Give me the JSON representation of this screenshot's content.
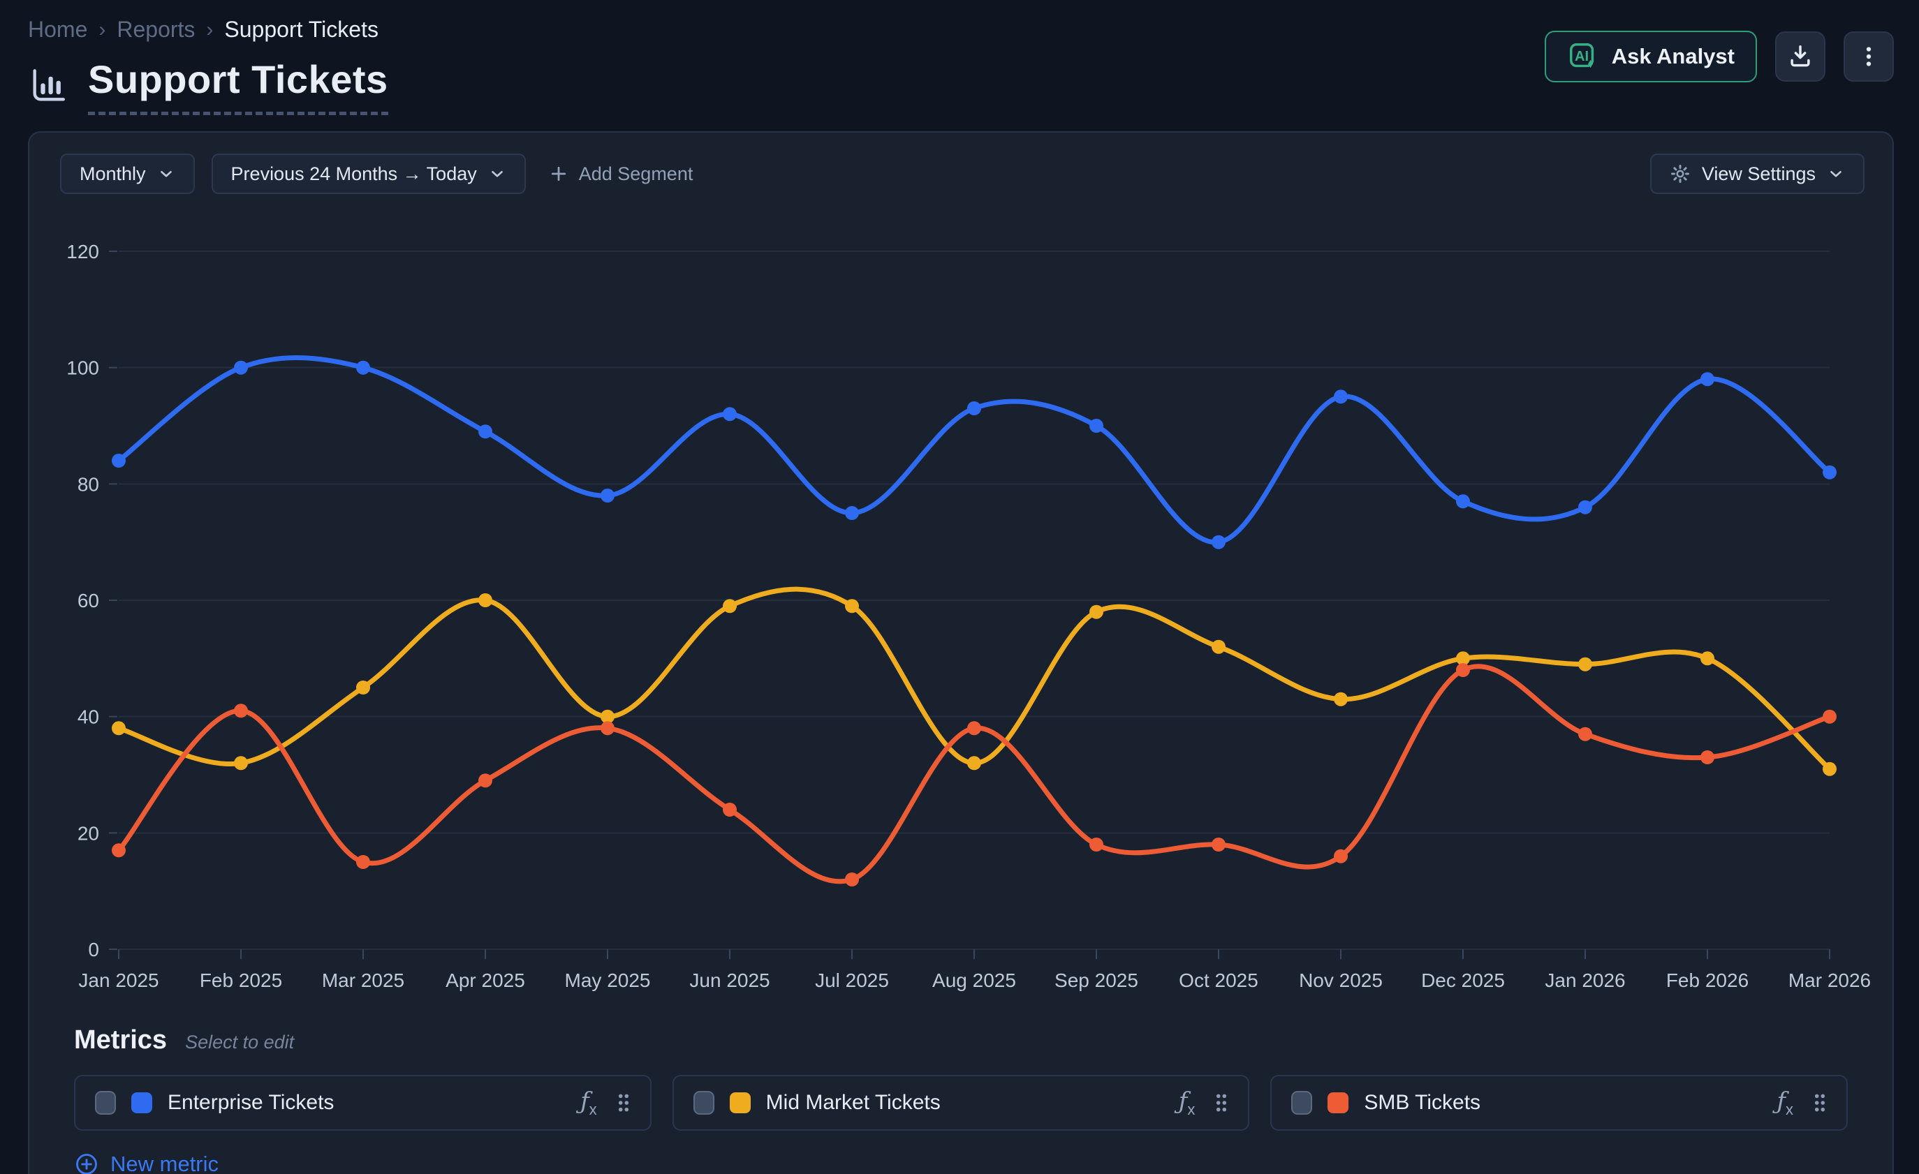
{
  "breadcrumb": {
    "items": [
      "Home",
      "Reports",
      "Support Tickets"
    ],
    "separator": "›"
  },
  "header": {
    "title": "Support Tickets"
  },
  "actions": {
    "ask_analyst_label": "Ask Analyst",
    "ai_badge_text": "AI"
  },
  "toolbar": {
    "granularity": "Monthly",
    "date_range": "Previous 24 Months → Today",
    "add_segment_label": "Add Segment",
    "view_settings_label": "View Settings"
  },
  "chart_data": {
    "type": "line",
    "title": "Support Tickets",
    "x": [
      "Jan 2025",
      "Feb 2025",
      "Mar 2025",
      "Apr 2025",
      "May 2025",
      "Jun 2025",
      "Jul 2025",
      "Aug 2025",
      "Sep 2025",
      "Oct 2025",
      "Nov 2025",
      "Dec 2025",
      "Jan 2026",
      "Feb 2026",
      "Mar 2026"
    ],
    "series": [
      {
        "name": "Enterprise Tickets",
        "color": "#2e6bf0",
        "values": [
          84,
          100,
          100,
          89,
          78,
          92,
          75,
          93,
          90,
          70,
          95,
          77,
          76,
          98,
          82
        ]
      },
      {
        "name": "Mid Market Tickets",
        "color": "#f0ac1f",
        "values": [
          38,
          32,
          45,
          60,
          40,
          59,
          59,
          32,
          58,
          52,
          43,
          50,
          49,
          50,
          31
        ]
      },
      {
        "name": "SMB Tickets",
        "color": "#ee5c35",
        "values": [
          17,
          41,
          15,
          29,
          38,
          24,
          12,
          38,
          18,
          18,
          16,
          48,
          37,
          33,
          40
        ]
      }
    ],
    "ylim": [
      0,
      120
    ],
    "yticks": [
      0,
      20,
      40,
      60,
      80,
      100,
      120
    ],
    "xlabel": "",
    "ylabel": "",
    "grid": "horizontal",
    "legend": "none",
    "smooth": true
  },
  "metrics": {
    "heading": "Metrics",
    "hint": "Select to edit",
    "items": [
      {
        "label": "Enterprise Tickets",
        "color": "#2e6bf0"
      },
      {
        "label": "Mid Market Tickets",
        "color": "#f0ac1f"
      },
      {
        "label": "SMB Tickets",
        "color": "#ee5c35"
      }
    ],
    "new_metric_label": "New metric"
  },
  "colors": {
    "page_bg": "#0f1520",
    "card_bg": "#19212f",
    "card_border": "#27324a",
    "grid_line": "#242e3e",
    "accent_blue": "#2e6bf0",
    "accent_yellow": "#f0ac1f",
    "accent_orange": "#ee5c35",
    "ask_analyst_green": "#35b185",
    "link_blue": "#3b79f2",
    "muted_text": "#93a1b8"
  }
}
